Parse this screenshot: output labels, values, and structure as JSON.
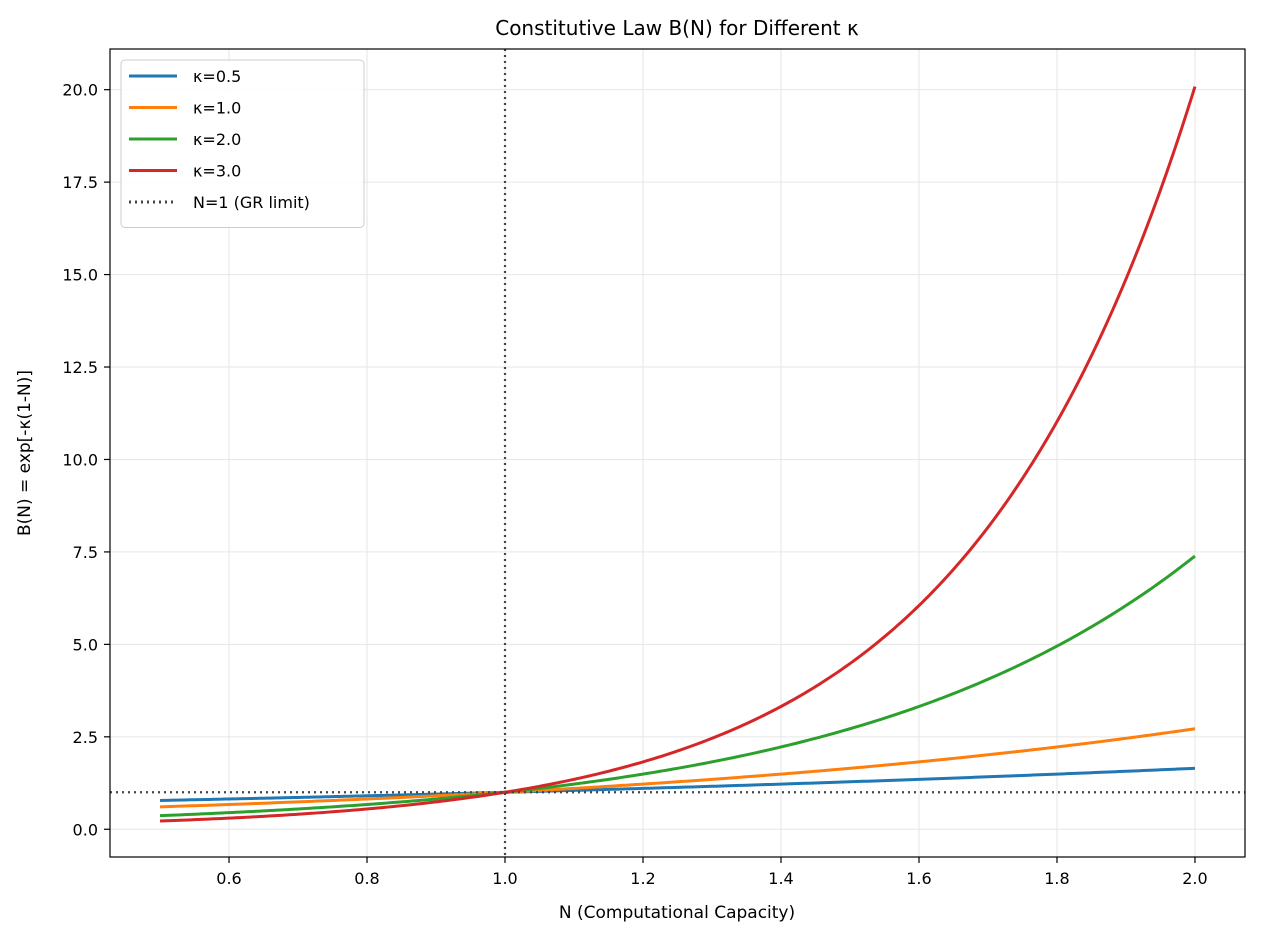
{
  "chart_data": {
    "type": "line",
    "title": "Constitutive Law B(N) for Different κ",
    "xlabel": "N (Computational Capacity)",
    "ylabel": "B(N) = exp[-κ(1-N)]",
    "xlim": [
      0.4275,
      2.0725
    ],
    "ylim": [
      -0.75,
      21.1
    ],
    "xticks": [
      0.6,
      0.8,
      1.0,
      1.2,
      1.4,
      1.6,
      1.8,
      2.0
    ],
    "xtick_labels": [
      "0.6",
      "0.8",
      "1.0",
      "1.2",
      "1.4",
      "1.6",
      "1.8",
      "2.0"
    ],
    "yticks": [
      0,
      2.5,
      5,
      7.5,
      10,
      12.5,
      15,
      17.5,
      20
    ],
    "ytick_labels": [
      "0.0",
      "2.5",
      "5.0",
      "7.5",
      "10.0",
      "12.5",
      "15.0",
      "17.5",
      "20.0"
    ],
    "grid": true,
    "legend_position": "top-left",
    "x_range": [
      0.5,
      2.0
    ],
    "series": [
      {
        "name": "κ=0.5",
        "kappa": 0.5,
        "color": "#1f77b4",
        "style": "solid"
      },
      {
        "name": "κ=1.0",
        "kappa": 1.0,
        "color": "#ff7f0e",
        "style": "solid"
      },
      {
        "name": "κ=2.0",
        "kappa": 2.0,
        "color": "#2ca02c",
        "style": "solid"
      },
      {
        "name": "κ=3.0",
        "kappa": 3.0,
        "color": "#d62728",
        "style": "solid"
      }
    ],
    "reference_lines": [
      {
        "name": "N=1 (GR limit)",
        "orientation": "vertical",
        "value": 1.0,
        "color": "#444444",
        "style": "dotted"
      },
      {
        "name": "",
        "orientation": "horizontal",
        "value": 1.0,
        "color": "#444444",
        "style": "dotted"
      }
    ]
  }
}
